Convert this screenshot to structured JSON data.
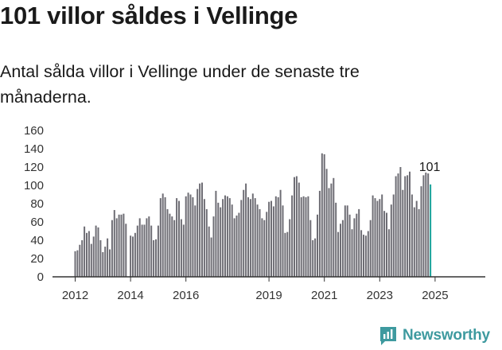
{
  "header": {
    "title": "101 villor såldes i Vellinge",
    "subtitle": "Antal sålda villor i Vellinge under de senaste tre månaderna."
  },
  "brand": {
    "name": "Newsworthy",
    "icon": "newsworthy-chart-logo-icon",
    "color": "#3e9a9f"
  },
  "colors": {
    "bar": "#6e6d74",
    "highlight": "#1aa39a",
    "axis": "#333333"
  },
  "chart_data": {
    "type": "bar",
    "title": "",
    "xlabel": "",
    "ylabel": "",
    "ylim": [
      0,
      160
    ],
    "yticks": [
      "0",
      "20",
      "40",
      "60",
      "80",
      "100",
      "120",
      "140",
      "160"
    ],
    "xticks": [
      {
        "label": "2012",
        "x": "2012-01"
      },
      {
        "label": "2014",
        "x": "2014-01"
      },
      {
        "label": "2016",
        "x": "2016-01"
      },
      {
        "label": "2019",
        "x": "2019-01"
      },
      {
        "label": "2021",
        "x": "2021-01"
      },
      {
        "label": "2023",
        "x": "2023-01"
      },
      {
        "label": "2025",
        "x": "2025-01"
      }
    ],
    "start_period": "2012-01",
    "highlight_value_label": "101",
    "series": [
      {
        "values": [
          28,
          29,
          35,
          40,
          55,
          48,
          50,
          36,
          44,
          56,
          54,
          40,
          27,
          33,
          42,
          30,
          62,
          73,
          64,
          68,
          68,
          69,
          58,
          0,
          45,
          44,
          48,
          56,
          64,
          57,
          57,
          64,
          66,
          56,
          40,
          41,
          56,
          86,
          91,
          87,
          74,
          69,
          66,
          62,
          86,
          83,
          63,
          57,
          88,
          92,
          90,
          87,
          78,
          96,
          102,
          103,
          85,
          74,
          55,
          43,
          66,
          94,
          81,
          76,
          85,
          89,
          88,
          86,
          79,
          64,
          67,
          70,
          84,
          95,
          102,
          87,
          85,
          91,
          86,
          79,
          74,
          64,
          62,
          71,
          82,
          83,
          77,
          88,
          87,
          95,
          78,
          48,
          49,
          63,
          89,
          109,
          110,
          103,
          87,
          88,
          87,
          88,
          62,
          40,
          42,
          68,
          94,
          135,
          134,
          118,
          97,
          102,
          108,
          81,
          49,
          58,
          62,
          78,
          78,
          68,
          52,
          64,
          69,
          74,
          51,
          46,
          45,
          50,
          62,
          89,
          86,
          83,
          85,
          90,
          72,
          70,
          52,
          79,
          90,
          110,
          113,
          120,
          95,
          110,
          111,
          115,
          90,
          76,
          83,
          74,
          99,
          111,
          114,
          113,
          101
        ]
      }
    ]
  }
}
